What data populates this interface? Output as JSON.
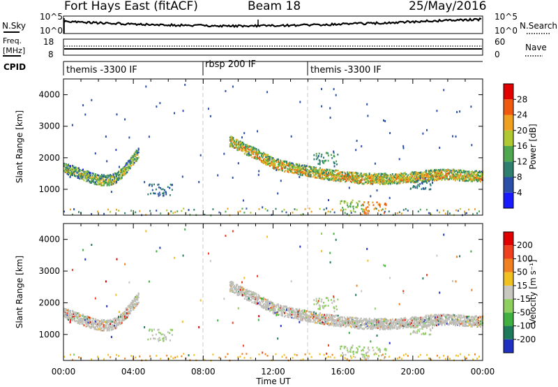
{
  "header": {
    "station": "Fort Hays East (fitACF)",
    "beam": "Beam 18",
    "date": "25/May/2016"
  },
  "noise_panel": {
    "label": "N.Sky",
    "right_label": "N.Search",
    "left_ticks": [
      "10^5",
      "10^0"
    ],
    "right_ticks": [
      "10^5",
      "10^0"
    ]
  },
  "freq_panel": {
    "label_line1": "Freq.",
    "label_line2": "[MHz]",
    "left_ticks": [
      "18",
      "8"
    ],
    "right_ticks": [
      "60",
      "0"
    ],
    "right_label": "Nave"
  },
  "cpid_panel": {
    "label": "CPID",
    "segments": [
      {
        "label": "themis -3300 IF",
        "start_hour": 0
      },
      {
        "label": "rbsp 200 IF",
        "start_hour": 8
      },
      {
        "label": "themis -3300 IF",
        "start_hour": 14
      }
    ]
  },
  "x_axis": {
    "label": "Time UT",
    "ticks": [
      "00:00",
      "04:00",
      "08:00",
      "12:00",
      "16:00",
      "20:00",
      "00:00"
    ],
    "range_hours": [
      0,
      24
    ]
  },
  "power_panel": {
    "ylabel": "Slant Range [km]",
    "yticks": [
      "1000",
      "2000",
      "3000",
      "4000"
    ],
    "colorbar_label": "Power [dB]",
    "colorbar_ticks": [
      "4",
      "8",
      "12",
      "16",
      "20",
      "24",
      "28"
    ],
    "colors": [
      "#1a1aff",
      "#2a4fa8",
      "#2f7f6f",
      "#4fa84f",
      "#b0c832",
      "#f0a020",
      "#f05a10",
      "#e00000"
    ]
  },
  "velocity_panel": {
    "ylabel": "Slant Range [km]",
    "yticks": [
      "1000",
      "2000",
      "3000",
      "4000"
    ],
    "colorbar_label": "Velocity [m s⁻¹]",
    "colorbar_ticks": [
      "200",
      "100",
      "50",
      "15",
      "-15",
      "-50",
      "-100",
      "-200"
    ],
    "colors": [
      "#2030c0",
      "#1e7a5a",
      "#40b040",
      "#8ed060",
      "#c8c8c0",
      "#f0c020",
      "#f08020",
      "#f04020",
      "#e00000"
    ],
    "ground_scatter_color": "#bfbfb8"
  },
  "chart_data": {
    "type": "heatmap",
    "x_unit": "hours UT",
    "y_unit": "slant range km",
    "ylim": [
      180,
      4500
    ],
    "xlim": [
      0,
      24
    ],
    "power_scatter_bands": [
      {
        "x": [
          0.0,
          0.5,
          1.0,
          1.5,
          2.0,
          2.5,
          3.0,
          3.5,
          4.0,
          4.3
        ],
        "y": [
          1650,
          1550,
          1450,
          1350,
          1280,
          1250,
          1350,
          1600,
          1950,
          2150
        ],
        "power_db": 16
      },
      {
        "x": [
          9.5,
          10.0,
          11.0,
          12.0,
          13.0,
          14.0,
          15.0,
          16.0,
          17.0,
          18.0,
          19.0,
          20.0,
          21.0,
          22.0,
          23.0,
          24.0
        ],
        "y": [
          2500,
          2350,
          2100,
          1800,
          1650,
          1550,
          1450,
          1380,
          1320,
          1300,
          1320,
          1360,
          1420,
          1450,
          1400,
          1380
        ],
        "power_db": 20
      }
    ],
    "sporadic_echoes": [
      {
        "x": 5.5,
        "y": 1000,
        "power_db": 8
      },
      {
        "x": 16.5,
        "y": 500,
        "power_db": 16
      },
      {
        "x": 17.8,
        "y": 450,
        "power_db": 24
      },
      {
        "x": 15.0,
        "y": 2000,
        "power_db": 12
      },
      {
        "x": 20.5,
        "y": 1200,
        "power_db": 8
      }
    ]
  }
}
